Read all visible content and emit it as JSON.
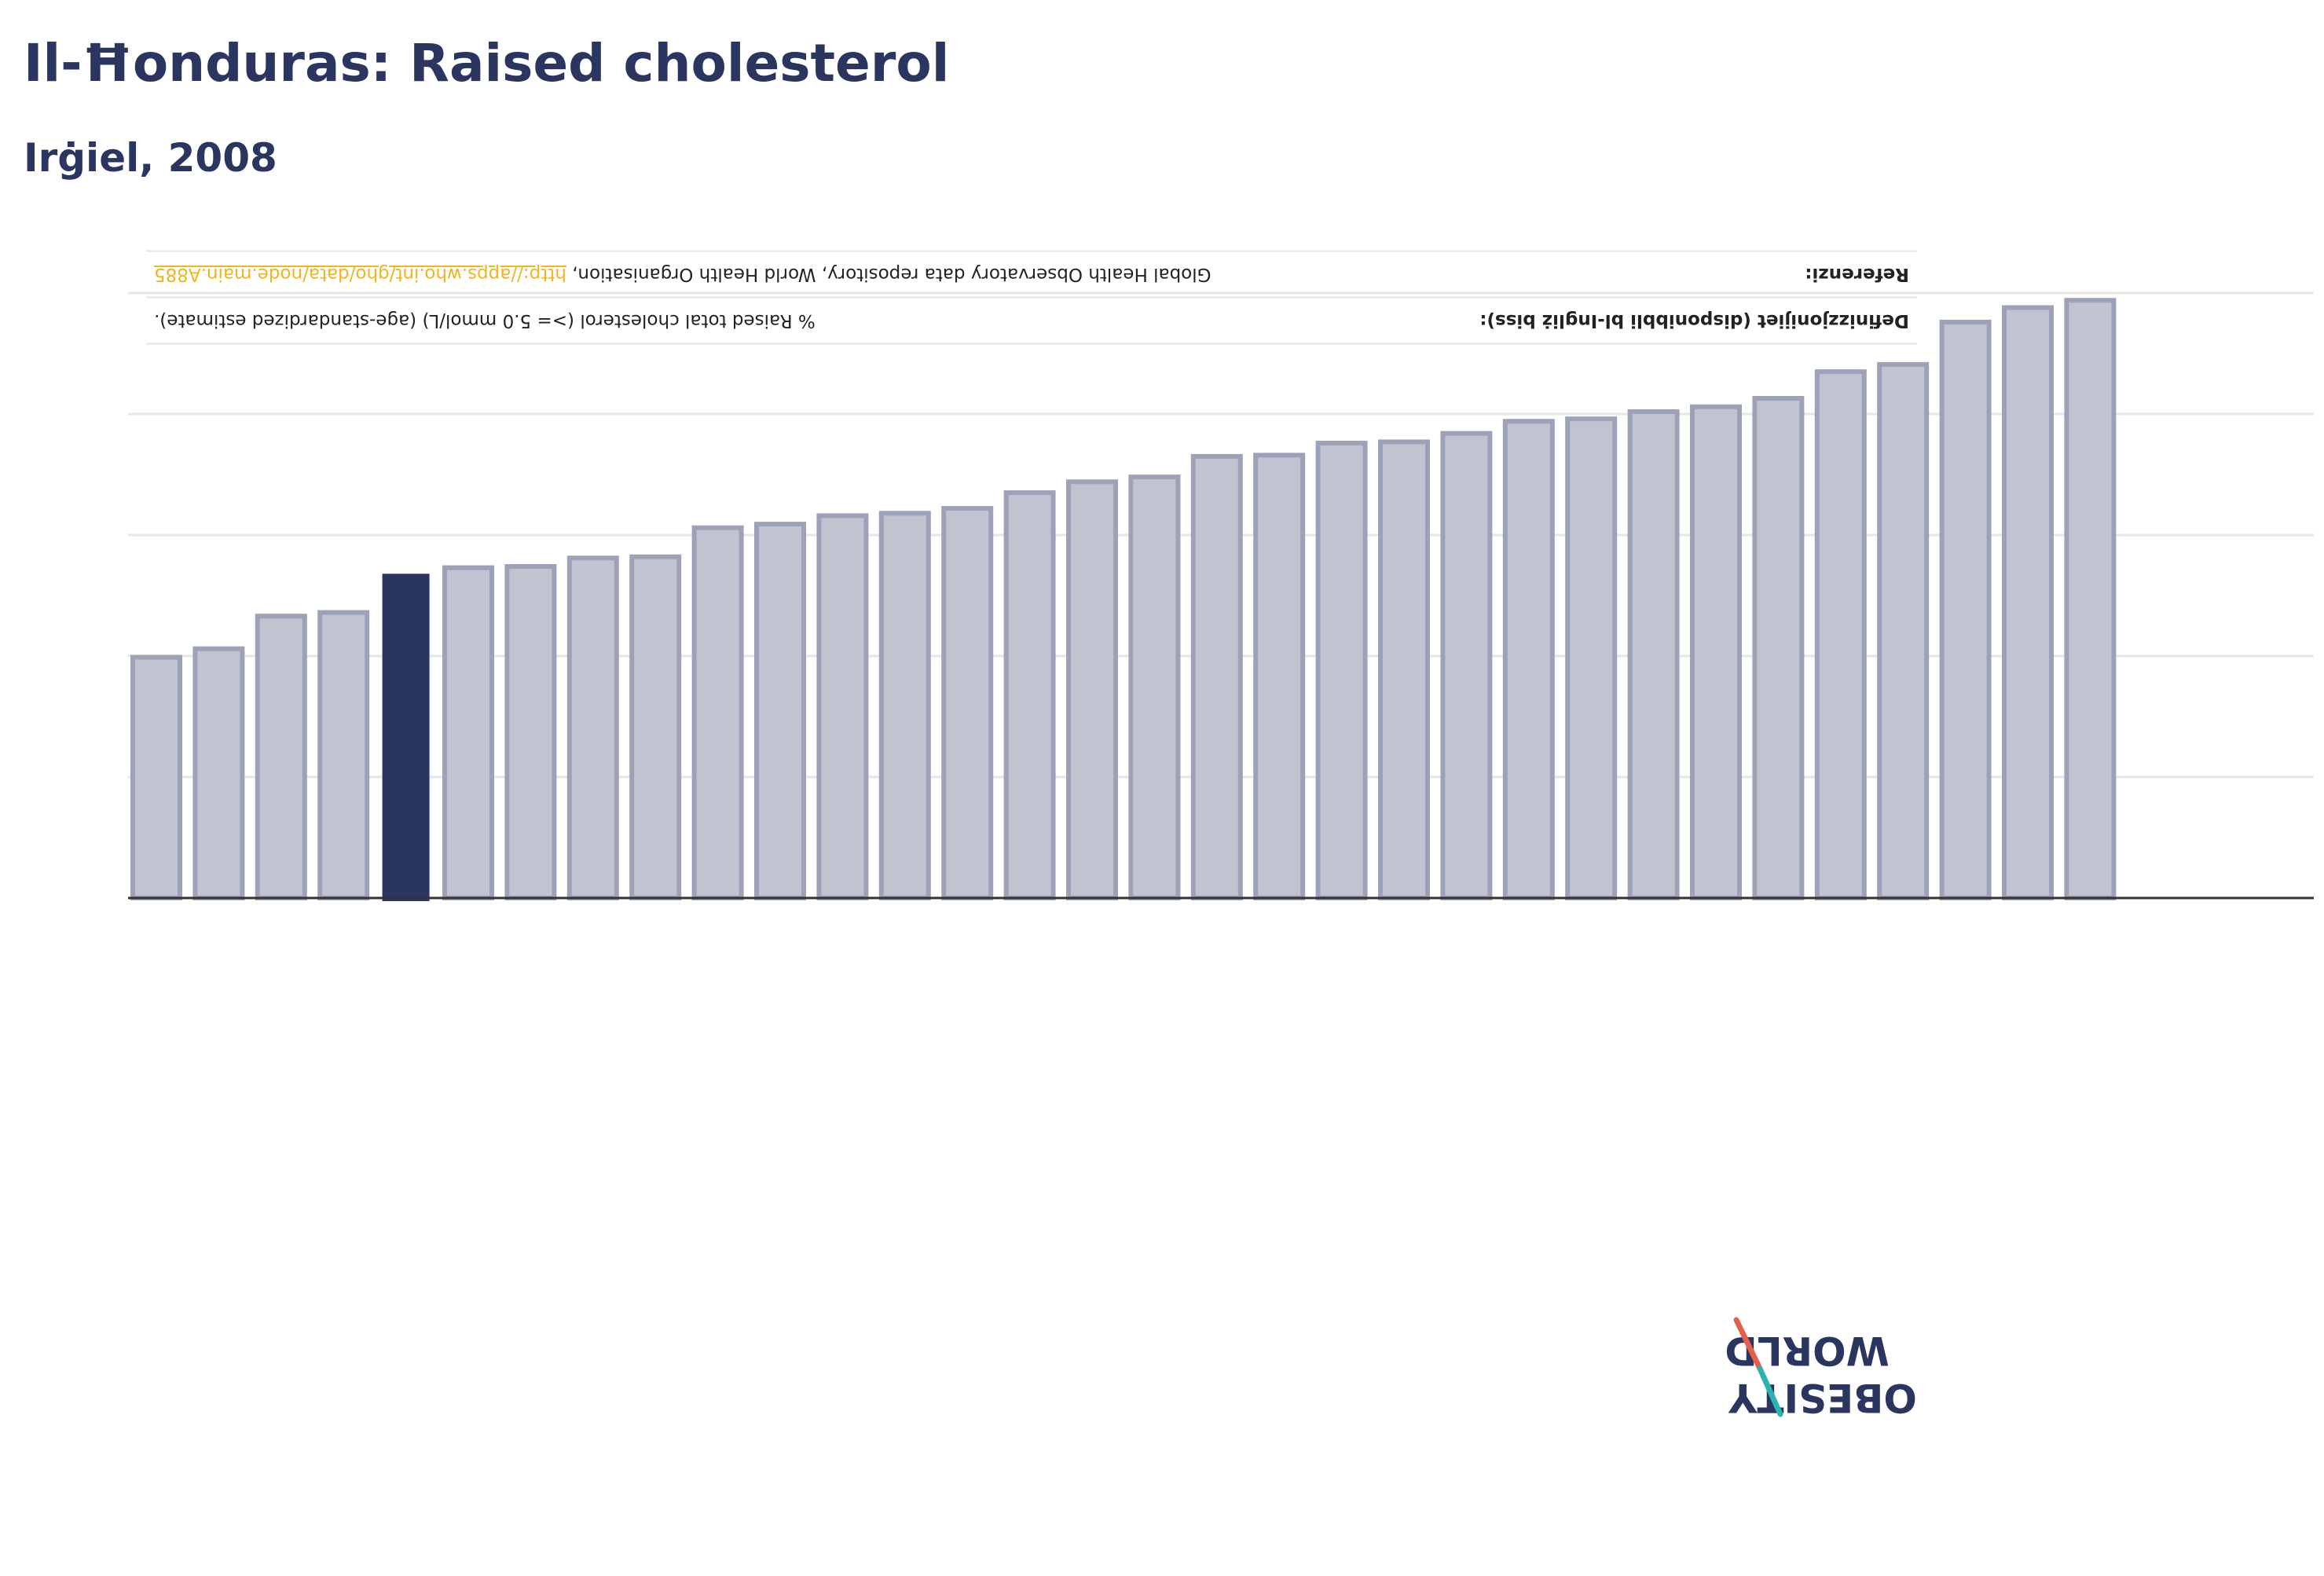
{
  "title": "Il-Ħonduras: Raised cholesterol",
  "subtitle": "Irġiel, 2008",
  "info": {
    "definition_label": "Definizzjonijiet (disponibbli bl-Ingliż biss):",
    "definition_value": "% Raised total cholesterol (>= 5.0 mmol/L) (age-standardized estimate).",
    "reference_label": "Referenzi:",
    "reference_value": "Global Health Observatory data repository, World Health Organisation,",
    "reference_link": "http://apps.who.int/gho/data/node.main.A885"
  },
  "logo": {
    "line1": "OBESITY",
    "line2": "WORLD"
  },
  "colors": {
    "highlight": "#2a3560",
    "bar_fill": "#c1c4d0",
    "bar_stroke": "#9da2b9",
    "grid": "#e6e6e6",
    "axis": "#333333",
    "logo_text": "#2a3560",
    "logo_red": "#e2614b",
    "logo_teal": "#2bb3b1"
  },
  "chart_data": {
    "type": "bar",
    "grid": true,
    "ylim": [
      0,
      50
    ],
    "gridlines": [
      10,
      20,
      30,
      40,
      50
    ],
    "highlight_index": 4,
    "values": [
      19.9,
      20.6,
      23.3,
      23.6,
      26.8,
      27.3,
      27.4,
      28.1,
      28.2,
      30.6,
      30.9,
      31.6,
      31.8,
      32.2,
      33.5,
      34.4,
      34.8,
      36.5,
      36.6,
      37.6,
      37.7,
      38.4,
      39.4,
      39.6,
      40.2,
      40.6,
      41.3,
      43.5,
      44.1,
      47.6,
      48.8,
      49.4
    ]
  }
}
